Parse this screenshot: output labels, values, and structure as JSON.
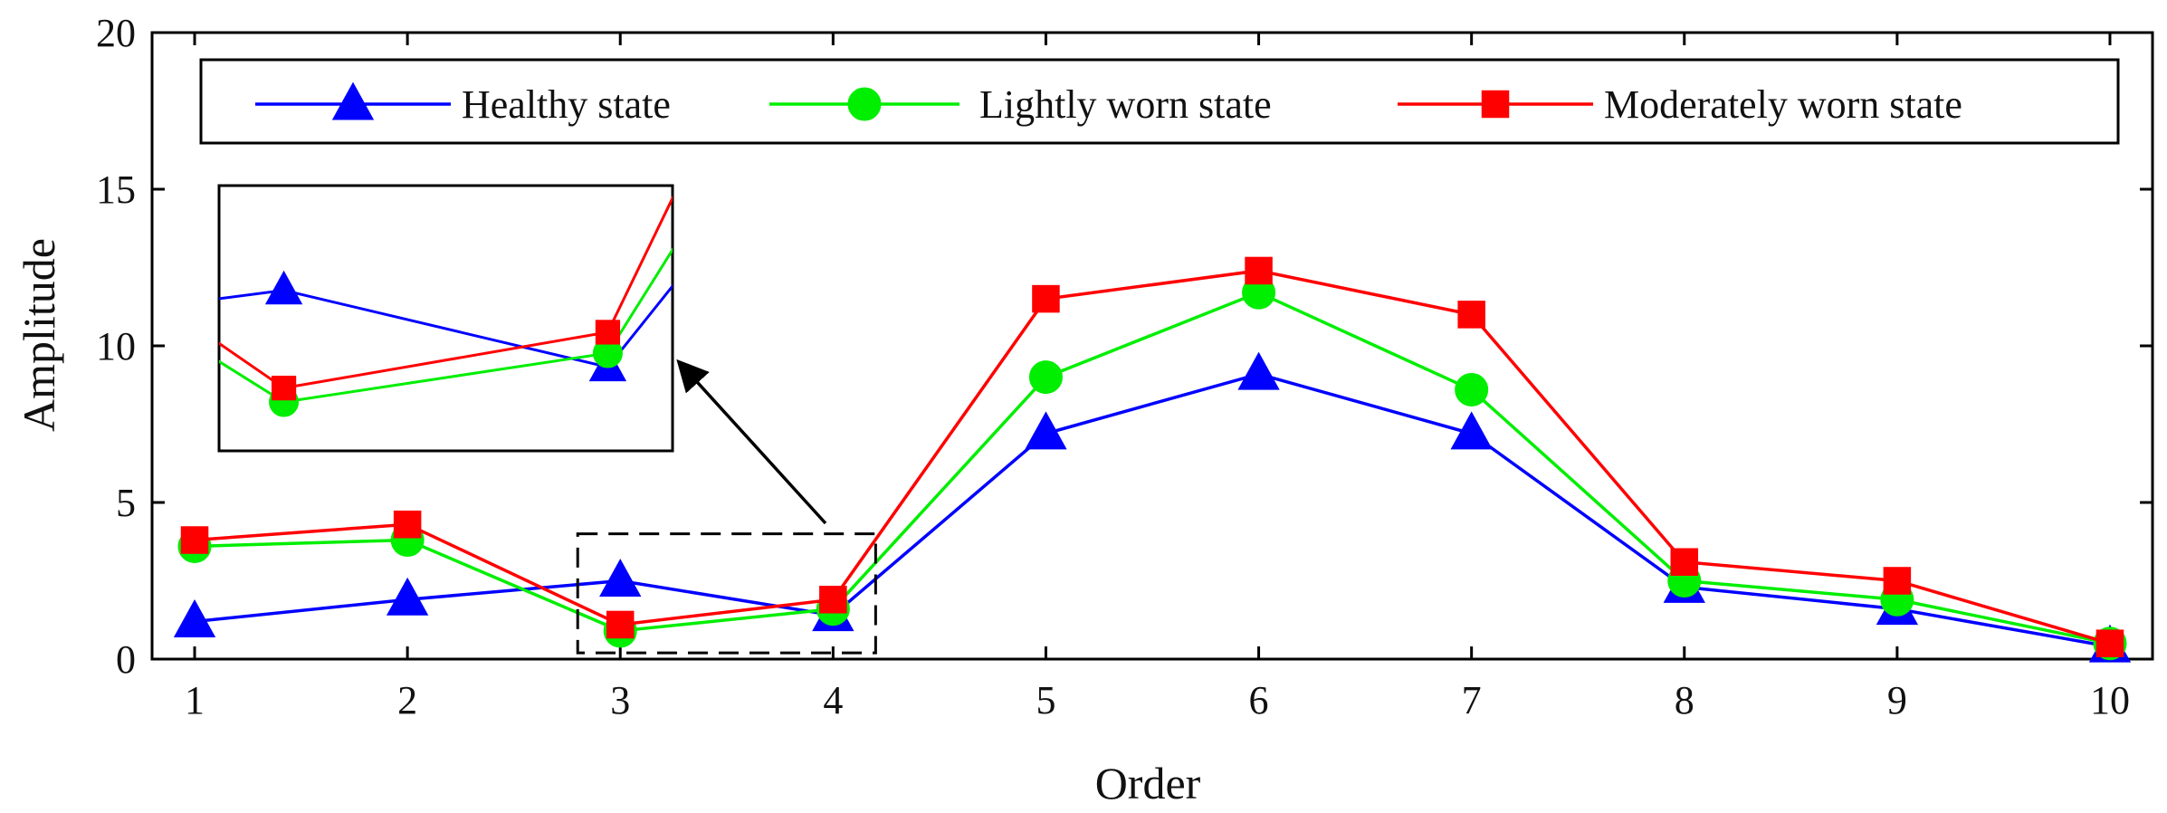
{
  "chart_data": {
    "type": "line",
    "title": "",
    "xlabel": "Order",
    "ylabel": "Amplitude",
    "x": [
      1,
      2,
      3,
      4,
      5,
      6,
      7,
      8,
      9,
      10
    ],
    "xlim": [
      0.8,
      10.2
    ],
    "ylim": [
      0,
      20
    ],
    "xticks": [
      "1",
      "2",
      "3",
      "4",
      "5",
      "6",
      "7",
      "8",
      "9",
      "10"
    ],
    "yticks": [
      "0",
      "5",
      "10",
      "15",
      "20"
    ],
    "grid": false,
    "legend_position": "top",
    "series": [
      {
        "name": "Healthy state",
        "color": "#0000ff",
        "marker": "triangle",
        "values": [
          1.2,
          1.9,
          2.5,
          1.4,
          7.2,
          9.1,
          7.2,
          2.3,
          1.6,
          0.4
        ]
      },
      {
        "name": "Lightly worn state",
        "color": "#00ee00",
        "marker": "circle",
        "values": [
          3.6,
          3.8,
          0.9,
          1.6,
          9.0,
          11.7,
          8.6,
          2.5,
          1.9,
          0.5
        ]
      },
      {
        "name": "Moderately worn state",
        "color": "#ff0000",
        "marker": "square",
        "values": [
          3.8,
          4.3,
          1.1,
          1.9,
          11.5,
          12.4,
          11.0,
          3.1,
          2.5,
          0.5
        ]
      }
    ],
    "zoom_inset": {
      "x_range": [
        2.8,
        4.2
      ],
      "y_range": [
        0.2,
        4.0
      ]
    }
  }
}
